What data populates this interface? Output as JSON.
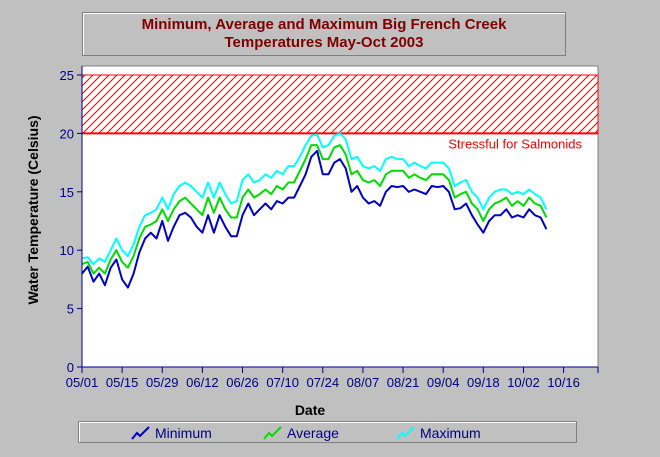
{
  "chart_data": {
    "type": "line",
    "title_lines": [
      "Minimum, Average and Maximum Big French Creek",
      "Temperatures May-Oct 2003"
    ],
    "xlabel": "Date",
    "ylabel": "Water Temperature (Celsius)",
    "ylim": [
      0,
      25
    ],
    "yticks": [
      0,
      5,
      10,
      15,
      20,
      25
    ],
    "x_ticks": [
      "05/01",
      "05/15",
      "05/29",
      "06/12",
      "06/26",
      "07/10",
      "07/24",
      "08/07",
      "08/21",
      "09/04",
      "09/18",
      "10/02",
      "10/16"
    ],
    "x_tick_dates": [
      "2003-05-01",
      "2003-05-15",
      "2003-05-29",
      "2003-06-12",
      "2003-06-26",
      "2003-07-10",
      "2003-07-24",
      "2003-08-07",
      "2003-08-21",
      "2003-09-04",
      "2003-09-18",
      "2003-10-02",
      "2003-10-16"
    ],
    "xlim": [
      "2003-05-01",
      "2003-10-28"
    ],
    "grid": false,
    "legend_placement": "bottom",
    "threshold": {
      "label": "Stressful for Salmonids",
      "from": 20,
      "to": 25,
      "color": "#ff0000"
    },
    "series": [
      {
        "name": "Minimum",
        "color": "#0000c8",
        "points": [
          [
            "2003-05-01",
            8.0
          ],
          [
            "2003-05-03",
            8.6
          ],
          [
            "2003-05-05",
            7.3
          ],
          [
            "2003-05-07",
            8.0
          ],
          [
            "2003-05-09",
            7.0
          ],
          [
            "2003-05-11",
            8.5
          ],
          [
            "2003-05-13",
            9.2
          ],
          [
            "2003-05-15",
            7.5
          ],
          [
            "2003-05-17",
            6.8
          ],
          [
            "2003-05-19",
            8.0
          ],
          [
            "2003-05-21",
            9.8
          ],
          [
            "2003-05-23",
            11.0
          ],
          [
            "2003-05-25",
            11.5
          ],
          [
            "2003-05-27",
            11.0
          ],
          [
            "2003-05-29",
            12.5
          ],
          [
            "2003-05-31",
            10.8
          ],
          [
            "2003-06-02",
            12.0
          ],
          [
            "2003-06-04",
            13.0
          ],
          [
            "2003-06-06",
            13.2
          ],
          [
            "2003-06-08",
            12.8
          ],
          [
            "2003-06-10",
            12.0
          ],
          [
            "2003-06-12",
            11.5
          ],
          [
            "2003-06-14",
            13.0
          ],
          [
            "2003-06-16",
            11.5
          ],
          [
            "2003-06-18",
            13.0
          ],
          [
            "2003-06-20",
            12.0
          ],
          [
            "2003-06-22",
            11.2
          ],
          [
            "2003-06-24",
            11.2
          ],
          [
            "2003-06-26",
            13.0
          ],
          [
            "2003-06-28",
            14.0
          ],
          [
            "2003-06-30",
            13.0
          ],
          [
            "2003-07-02",
            13.5
          ],
          [
            "2003-07-04",
            14.0
          ],
          [
            "2003-07-06",
            13.5
          ],
          [
            "2003-07-08",
            14.2
          ],
          [
            "2003-07-10",
            14.0
          ],
          [
            "2003-07-12",
            14.5
          ],
          [
            "2003-07-14",
            14.5
          ],
          [
            "2003-07-16",
            15.5
          ],
          [
            "2003-07-18",
            16.5
          ],
          [
            "2003-07-20",
            18.0
          ],
          [
            "2003-07-22",
            18.5
          ],
          [
            "2003-07-24",
            16.5
          ],
          [
            "2003-07-26",
            16.5
          ],
          [
            "2003-07-28",
            17.5
          ],
          [
            "2003-07-30",
            17.8
          ],
          [
            "2003-08-01",
            17.0
          ],
          [
            "2003-08-03",
            15.0
          ],
          [
            "2003-08-05",
            15.5
          ],
          [
            "2003-08-07",
            14.5
          ],
          [
            "2003-08-09",
            14.0
          ],
          [
            "2003-08-11",
            14.2
          ],
          [
            "2003-08-13",
            13.8
          ],
          [
            "2003-08-15",
            15.0
          ],
          [
            "2003-08-17",
            15.5
          ],
          [
            "2003-08-19",
            15.4
          ],
          [
            "2003-08-21",
            15.5
          ],
          [
            "2003-08-23",
            15.0
          ],
          [
            "2003-08-25",
            15.2
          ],
          [
            "2003-08-27",
            15.0
          ],
          [
            "2003-08-29",
            14.8
          ],
          [
            "2003-08-31",
            15.5
          ],
          [
            "2003-09-02",
            15.4
          ],
          [
            "2003-09-04",
            15.5
          ],
          [
            "2003-09-06",
            15.0
          ],
          [
            "2003-09-08",
            13.5
          ],
          [
            "2003-09-10",
            13.6
          ],
          [
            "2003-09-12",
            14.0
          ],
          [
            "2003-09-14",
            13.0
          ],
          [
            "2003-09-16",
            12.2
          ],
          [
            "2003-09-18",
            11.5
          ],
          [
            "2003-09-20",
            12.5
          ],
          [
            "2003-09-22",
            13.0
          ],
          [
            "2003-09-24",
            13.0
          ],
          [
            "2003-09-26",
            13.5
          ],
          [
            "2003-09-28",
            12.8
          ],
          [
            "2003-09-30",
            13.0
          ],
          [
            "2003-10-02",
            12.8
          ],
          [
            "2003-10-04",
            13.5
          ],
          [
            "2003-10-06",
            13.0
          ],
          [
            "2003-10-08",
            12.8
          ],
          [
            "2003-10-10",
            11.8
          ]
        ]
      },
      {
        "name": "Average",
        "color": "#00dc00",
        "points": [
          [
            "2003-05-01",
            8.8
          ],
          [
            "2003-05-03",
            9.0
          ],
          [
            "2003-05-05",
            8.0
          ],
          [
            "2003-05-07",
            8.5
          ],
          [
            "2003-05-09",
            8.0
          ],
          [
            "2003-05-11",
            9.2
          ],
          [
            "2003-05-13",
            10.0
          ],
          [
            "2003-05-15",
            9.0
          ],
          [
            "2003-05-17",
            8.5
          ],
          [
            "2003-05-19",
            9.5
          ],
          [
            "2003-05-21",
            11.0
          ],
          [
            "2003-05-23",
            12.0
          ],
          [
            "2003-05-25",
            12.2
          ],
          [
            "2003-05-27",
            12.5
          ],
          [
            "2003-05-29",
            13.5
          ],
          [
            "2003-05-31",
            12.5
          ],
          [
            "2003-06-02",
            13.5
          ],
          [
            "2003-06-04",
            14.2
          ],
          [
            "2003-06-06",
            14.5
          ],
          [
            "2003-06-08",
            14.0
          ],
          [
            "2003-06-10",
            13.5
          ],
          [
            "2003-06-12",
            13.0
          ],
          [
            "2003-06-14",
            14.5
          ],
          [
            "2003-06-16",
            13.2
          ],
          [
            "2003-06-18",
            14.5
          ],
          [
            "2003-06-20",
            13.5
          ],
          [
            "2003-06-22",
            12.8
          ],
          [
            "2003-06-24",
            12.8
          ],
          [
            "2003-06-26",
            14.5
          ],
          [
            "2003-06-28",
            15.2
          ],
          [
            "2003-06-30",
            14.5
          ],
          [
            "2003-07-02",
            14.8
          ],
          [
            "2003-07-04",
            15.2
          ],
          [
            "2003-07-06",
            14.8
          ],
          [
            "2003-07-08",
            15.5
          ],
          [
            "2003-07-10",
            15.2
          ],
          [
            "2003-07-12",
            15.8
          ],
          [
            "2003-07-14",
            15.8
          ],
          [
            "2003-07-16",
            16.8
          ],
          [
            "2003-07-18",
            17.8
          ],
          [
            "2003-07-20",
            19.0
          ],
          [
            "2003-07-22",
            19.0
          ],
          [
            "2003-07-24",
            17.8
          ],
          [
            "2003-07-26",
            17.8
          ],
          [
            "2003-07-28",
            18.8
          ],
          [
            "2003-07-30",
            19.0
          ],
          [
            "2003-08-01",
            18.2
          ],
          [
            "2003-08-03",
            16.5
          ],
          [
            "2003-08-05",
            16.8
          ],
          [
            "2003-08-07",
            16.0
          ],
          [
            "2003-08-09",
            15.8
          ],
          [
            "2003-08-11",
            16.0
          ],
          [
            "2003-08-13",
            15.5
          ],
          [
            "2003-08-15",
            16.5
          ],
          [
            "2003-08-17",
            16.8
          ],
          [
            "2003-08-19",
            16.8
          ],
          [
            "2003-08-21",
            16.8
          ],
          [
            "2003-08-23",
            16.2
          ],
          [
            "2003-08-25",
            16.5
          ],
          [
            "2003-08-27",
            16.2
          ],
          [
            "2003-08-29",
            16.0
          ],
          [
            "2003-08-31",
            16.5
          ],
          [
            "2003-09-02",
            16.5
          ],
          [
            "2003-09-04",
            16.5
          ],
          [
            "2003-09-06",
            16.0
          ],
          [
            "2003-09-08",
            14.5
          ],
          [
            "2003-09-10",
            14.8
          ],
          [
            "2003-09-12",
            15.0
          ],
          [
            "2003-09-14",
            14.0
          ],
          [
            "2003-09-16",
            13.5
          ],
          [
            "2003-09-18",
            12.5
          ],
          [
            "2003-09-20",
            13.5
          ],
          [
            "2003-09-22",
            14.0
          ],
          [
            "2003-09-24",
            14.2
          ],
          [
            "2003-09-26",
            14.5
          ],
          [
            "2003-09-28",
            13.8
          ],
          [
            "2003-09-30",
            14.2
          ],
          [
            "2003-10-02",
            13.8
          ],
          [
            "2003-10-04",
            14.5
          ],
          [
            "2003-10-06",
            14.0
          ],
          [
            "2003-10-08",
            13.8
          ],
          [
            "2003-10-10",
            12.8
          ]
        ]
      },
      {
        "name": "Maximum",
        "color": "#00ffff",
        "points": [
          [
            "2003-05-01",
            9.3
          ],
          [
            "2003-05-03",
            9.4
          ],
          [
            "2003-05-05",
            8.8
          ],
          [
            "2003-05-07",
            9.3
          ],
          [
            "2003-05-09",
            9.0
          ],
          [
            "2003-05-11",
            10.0
          ],
          [
            "2003-05-13",
            11.0
          ],
          [
            "2003-05-15",
            10.0
          ],
          [
            "2003-05-17",
            9.5
          ],
          [
            "2003-05-19",
            10.5
          ],
          [
            "2003-05-21",
            12.0
          ],
          [
            "2003-05-23",
            13.0
          ],
          [
            "2003-05-25",
            13.2
          ],
          [
            "2003-05-27",
            13.5
          ],
          [
            "2003-05-29",
            14.5
          ],
          [
            "2003-05-31",
            13.5
          ],
          [
            "2003-06-02",
            14.8
          ],
          [
            "2003-06-04",
            15.5
          ],
          [
            "2003-06-06",
            15.8
          ],
          [
            "2003-06-08",
            15.5
          ],
          [
            "2003-06-10",
            15.0
          ],
          [
            "2003-06-12",
            14.5
          ],
          [
            "2003-06-14",
            15.8
          ],
          [
            "2003-06-16",
            14.5
          ],
          [
            "2003-06-18",
            15.8
          ],
          [
            "2003-06-20",
            14.8
          ],
          [
            "2003-06-22",
            14.0
          ],
          [
            "2003-06-24",
            14.2
          ],
          [
            "2003-06-26",
            16.0
          ],
          [
            "2003-06-28",
            16.5
          ],
          [
            "2003-06-30",
            15.8
          ],
          [
            "2003-07-02",
            16.0
          ],
          [
            "2003-07-04",
            16.5
          ],
          [
            "2003-07-06",
            16.2
          ],
          [
            "2003-07-08",
            16.8
          ],
          [
            "2003-07-10",
            16.5
          ],
          [
            "2003-07-12",
            17.2
          ],
          [
            "2003-07-14",
            17.2
          ],
          [
            "2003-07-16",
            18.0
          ],
          [
            "2003-07-18",
            19.0
          ],
          [
            "2003-07-20",
            19.8
          ],
          [
            "2003-07-22",
            19.9
          ],
          [
            "2003-07-24",
            18.8
          ],
          [
            "2003-07-26",
            19.0
          ],
          [
            "2003-07-28",
            19.8
          ],
          [
            "2003-07-30",
            20.0
          ],
          [
            "2003-08-01",
            19.5
          ],
          [
            "2003-08-03",
            17.8
          ],
          [
            "2003-08-05",
            18.0
          ],
          [
            "2003-08-07",
            17.2
          ],
          [
            "2003-08-09",
            17.0
          ],
          [
            "2003-08-11",
            17.2
          ],
          [
            "2003-08-13",
            16.8
          ],
          [
            "2003-08-15",
            17.8
          ],
          [
            "2003-08-17",
            18.0
          ],
          [
            "2003-08-19",
            17.8
          ],
          [
            "2003-08-21",
            17.8
          ],
          [
            "2003-08-23",
            17.2
          ],
          [
            "2003-08-25",
            17.5
          ],
          [
            "2003-08-27",
            17.2
          ],
          [
            "2003-08-29",
            17.0
          ],
          [
            "2003-08-31",
            17.5
          ],
          [
            "2003-09-02",
            17.5
          ],
          [
            "2003-09-04",
            17.5
          ],
          [
            "2003-09-06",
            17.0
          ],
          [
            "2003-09-08",
            15.5
          ],
          [
            "2003-09-10",
            15.8
          ],
          [
            "2003-09-12",
            16.0
          ],
          [
            "2003-09-14",
            15.0
          ],
          [
            "2003-09-16",
            14.5
          ],
          [
            "2003-09-18",
            13.5
          ],
          [
            "2003-09-20",
            14.5
          ],
          [
            "2003-09-22",
            15.0
          ],
          [
            "2003-09-24",
            15.2
          ],
          [
            "2003-09-26",
            15.2
          ],
          [
            "2003-09-28",
            14.8
          ],
          [
            "2003-09-30",
            15.0
          ],
          [
            "2003-10-02",
            14.8
          ],
          [
            "2003-10-04",
            15.2
          ],
          [
            "2003-10-06",
            14.8
          ],
          [
            "2003-10-08",
            14.5
          ],
          [
            "2003-10-10",
            13.5
          ]
        ]
      }
    ]
  }
}
